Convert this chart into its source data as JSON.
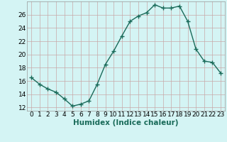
{
  "x": [
    0,
    1,
    2,
    3,
    4,
    5,
    6,
    7,
    8,
    9,
    10,
    11,
    12,
    13,
    14,
    15,
    16,
    17,
    18,
    19,
    20,
    21,
    22,
    23
  ],
  "y": [
    16.5,
    15.5,
    14.8,
    14.3,
    13.3,
    12.2,
    12.5,
    13.0,
    15.5,
    18.5,
    20.5,
    22.8,
    25.0,
    25.8,
    26.3,
    27.5,
    27.0,
    27.0,
    27.3,
    25.0,
    20.8,
    19.0,
    18.8,
    17.2
  ],
  "xlabel": "Humidex (Indice chaleur)",
  "xlim": [
    -0.5,
    23.5
  ],
  "ylim": [
    11.5,
    28.0
  ],
  "yticks": [
    12,
    14,
    16,
    18,
    20,
    22,
    24,
    26
  ],
  "xtick_labels": [
    "0",
    "1",
    "2",
    "3",
    "4",
    "5",
    "6",
    "7",
    "8",
    "9",
    "10",
    "11",
    "12",
    "13",
    "14",
    "15",
    "16",
    "17",
    "18",
    "19",
    "20",
    "21",
    "22",
    "23"
  ],
  "line_color": "#1a6b5a",
  "marker": "+",
  "bg_color": "#d4f4f4",
  "grid_color": "#c8a8a8",
  "xlabel_fontsize": 7.5,
  "tick_fontsize": 6.5
}
